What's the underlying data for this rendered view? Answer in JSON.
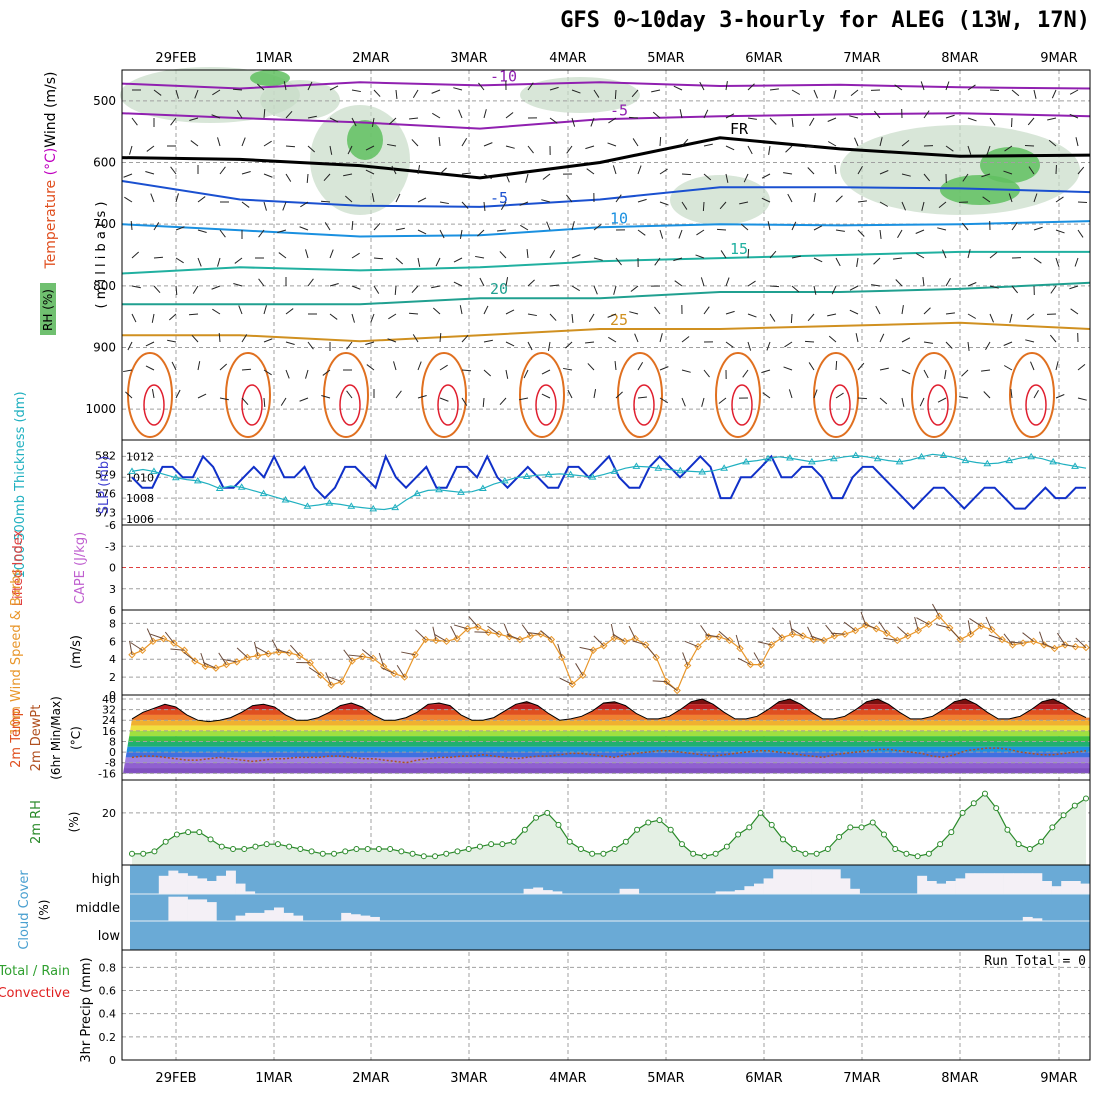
{
  "title": "GFS 0~10day 3-hourly for ALEG (13W, 17N)",
  "date_labels": [
    "29FEB",
    "1MAR",
    "2MAR",
    "3MAR",
    "4MAR",
    "5MAR",
    "6MAR",
    "7MAR",
    "8MAR",
    "9MAR"
  ],
  "colors": {
    "slp": "#1030c8",
    "thick": "#20b0c0",
    "wind": "#e8962a",
    "rh": "#2a8a2a",
    "cloud": "#6aaad6",
    "cloud_clear": "#f4f0f6",
    "frame": "#000000",
    "grid": "#a0a0a0"
  },
  "panels": {
    "upper": {
      "ylabels": [
        "Temperature",
        "(°C)",
        "Wind (m/s)",
        "RH (%)"
      ],
      "unit_vertical": "( m i l l i b a r s )",
      "ticks": [
        "500",
        "600",
        "700",
        "800",
        "900",
        "1000"
      ],
      "temp_contours": [
        {
          "label": "-10",
          "level": -10,
          "color": "#9020b0",
          "y": [
            472,
            480,
            470,
            475,
            470,
            476,
            474,
            478,
            480
          ]
        },
        {
          "label": "-5",
          "level": -5,
          "color": "#9020b0",
          "y": [
            520,
            528,
            535,
            545,
            530,
            525,
            522,
            520,
            525
          ]
        },
        {
          "label": "FR",
          "level": 0,
          "color": "#000000",
          "y": [
            592,
            595,
            605,
            625,
            600,
            560,
            578,
            590,
            588
          ]
        },
        {
          "label": "-5",
          "level": -5,
          "color": "#1a50d0",
          "y": [
            630,
            660,
            670,
            672,
            660,
            640,
            640,
            642,
            648
          ]
        },
        {
          "label": "10",
          "level": 10,
          "color": "#1a90e0",
          "y": [
            700,
            710,
            720,
            718,
            705,
            700,
            702,
            700,
            695
          ]
        },
        {
          "label": "15",
          "level": 15,
          "color": "#20b0a0",
          "y": [
            780,
            770,
            775,
            770,
            760,
            755,
            750,
            745,
            745
          ]
        },
        {
          "label": "20",
          "level": 20,
          "color": "#20a090",
          "y": [
            830,
            830,
            830,
            820,
            820,
            810,
            810,
            805,
            795
          ]
        },
        {
          "label": "25",
          "level": 25,
          "color": "#d09020",
          "y": [
            880,
            880,
            890,
            880,
            870,
            870,
            865,
            860,
            870
          ]
        }
      ]
    },
    "slp": {
      "label": "SLP (mb)",
      "thick_label": "1000-500mb Thickness (dm)",
      "ticks_left": [
        "582",
        "579",
        "576",
        "573"
      ],
      "ticks_right": [
        "1012",
        "1010",
        "1008",
        "1006"
      ],
      "slp": [
        1010,
        1009,
        1009,
        1011,
        1011,
        1010,
        1010,
        1012,
        1011,
        1009,
        1009,
        1010,
        1011,
        1010,
        1012,
        1010,
        1010,
        1011,
        1009,
        1008,
        1009,
        1011,
        1011,
        1010,
        1009,
        1012,
        1010,
        1009,
        1010,
        1011,
        1009,
        1009,
        1011,
        1011,
        1010,
        1012,
        1010,
        1009,
        1010,
        1011,
        1010,
        1009,
        1009,
        1011,
        1011,
        1010,
        1011,
        1012,
        1010,
        1009,
        1009,
        1011,
        1012,
        1011,
        1010,
        1011,
        1012,
        1011,
        1008,
        1008,
        1010,
        1010,
        1011,
        1012,
        1010,
        1010,
        1011,
        1011,
        1010,
        1008,
        1008,
        1010,
        1011,
        1011,
        1010,
        1009,
        1008,
        1007,
        1008,
        1009,
        1009,
        1008,
        1007,
        1008,
        1009,
        1009,
        1008,
        1007,
        1007,
        1008,
        1009,
        1008,
        1008,
        1009,
        1009
      ],
      "thick": [
        579.5,
        579.8,
        579.5,
        579,
        578.5,
        578.2,
        578,
        577.5,
        576.8,
        577.2,
        577,
        576.5,
        576,
        575.5,
        575,
        574.5,
        574,
        574.2,
        574.5,
        574.3,
        574,
        573.8,
        573.6,
        573.5,
        573.8,
        575,
        576,
        576.5,
        576.6,
        576.4,
        576.2,
        576.3,
        576.8,
        577.5,
        578,
        578.5,
        578.7,
        578.9,
        579,
        579.1,
        579,
        578.8,
        578.6,
        579,
        579.5,
        580,
        580.3,
        580.2,
        580,
        579.8,
        579.6,
        579.5,
        579.4,
        579.6,
        580,
        580.5,
        581,
        581.2,
        581.5,
        581.8,
        581.6,
        581.3,
        581,
        581.2,
        581.5,
        581.8,
        582,
        581.8,
        581.5,
        581.2,
        581,
        581.3,
        581.8,
        582.2,
        582,
        581.7,
        581.2,
        580.9,
        580.7,
        580.8,
        581.2,
        581.6,
        581.8,
        581.5,
        581,
        580.6,
        580.3,
        580
      ]
    },
    "cape": {
      "label_li": "Lifted Index",
      "label_cape": "CAPE (J/kg)",
      "ticks": [
        "-6",
        "-3",
        "0",
        "3",
        "6"
      ]
    },
    "wind": {
      "label": "10m Wind Speed & Barbs",
      "unit": "(m/s)",
      "ticks": [
        "8",
        "6",
        "4",
        "2",
        "0"
      ],
      "values": [
        4.5,
        5,
        6,
        6.3,
        5.8,
        5,
        3.8,
        3.2,
        3,
        3.4,
        3.7,
        4.2,
        4.4,
        4.6,
        4.8,
        4.7,
        4.4,
        3.6,
        2.2,
        1.1,
        1.5,
        3.8,
        4.3,
        4.1,
        3.2,
        2.4,
        2,
        4.5,
        6.2,
        6.1,
        6,
        6.3,
        7.4,
        7.6,
        7,
        6.8,
        6.5,
        6.2,
        6.6,
        6.8,
        6.2,
        4.2,
        1.2,
        2.2,
        5,
        5.5,
        6.4,
        6,
        6.3,
        5.6,
        4.2,
        1.5,
        0.5,
        3.3,
        5.4,
        6.5,
        6.5,
        6.1,
        5.2,
        3.4,
        3.4,
        5.6,
        6.4,
        6.8,
        6.6,
        6.2,
        6.1,
        6.6,
        6.8,
        7.2,
        7.8,
        7.4,
        6.9,
        6.1,
        6.6,
        7.2,
        7.9,
        8.8,
        7.5,
        6.2,
        6.8,
        7.7,
        7.3,
        6.2,
        5.6,
        5.8,
        6,
        5.6,
        5.2,
        5.6,
        5.4,
        5.3
      ]
    },
    "temp2m": {
      "label_a": "2m Temp",
      "label_b": "2m DewPt",
      "label_c": "(6hr Min/Max)",
      "unit": "(°C)",
      "ticks": [
        "40",
        "32",
        "24",
        "16",
        "8",
        "0",
        "-8",
        "-16"
      ],
      "temp": [
        25,
        30,
        33,
        36,
        34,
        28,
        24,
        23,
        24,
        26,
        30,
        35,
        36,
        34,
        28,
        24,
        24,
        26,
        30,
        35,
        37,
        34,
        28,
        24,
        24,
        26,
        30,
        36,
        37,
        35,
        28,
        24,
        24,
        26,
        31,
        36,
        38,
        35,
        29,
        24,
        25,
        27,
        31,
        37,
        38,
        35,
        29,
        25,
        25,
        27,
        32,
        38,
        40,
        36,
        30,
        25,
        25,
        27,
        32,
        38,
        40,
        36,
        30,
        25,
        25,
        27,
        32,
        38,
        40,
        36,
        30,
        25,
        25,
        27,
        32,
        38,
        40,
        36,
        30,
        25,
        25,
        27,
        32,
        38,
        40,
        36,
        30,
        26
      ],
      "dew": [
        -4,
        -3,
        -3,
        -4,
        -5,
        -6,
        -6,
        -5,
        -4,
        -5,
        -6,
        -7,
        -6,
        -5,
        -5,
        -4,
        -4,
        -4,
        -3,
        -3,
        -4,
        -5,
        -5,
        -6,
        -7,
        -8,
        -6,
        -5,
        -4,
        -4,
        -3,
        -3,
        -2,
        -3,
        -4,
        -5,
        -4,
        -3,
        -3,
        -2,
        -1,
        -1,
        -2,
        -3,
        -4,
        -2,
        -1,
        0,
        1,
        1,
        0,
        -1,
        -2,
        -3,
        -2,
        -1,
        0,
        1,
        1,
        0,
        -1,
        -2,
        -3,
        -4,
        -2,
        -1,
        0,
        1,
        2,
        2,
        1,
        0,
        -1,
        -3,
        -4,
        -2,
        1,
        2,
        3,
        3,
        2,
        0,
        -1,
        -2,
        -2,
        -1,
        0,
        1
      ]
    },
    "rh2m": {
      "label": "2m RH",
      "unit": "(%)",
      "ticks": [
        "20"
      ],
      "values": [
        3,
        3,
        4,
        8,
        11,
        12,
        12,
        9,
        6,
        5,
        5,
        6,
        7,
        7,
        6,
        5,
        4,
        3,
        3,
        4,
        5,
        5,
        5,
        5,
        4,
        3,
        2,
        2,
        3,
        4,
        5,
        6,
        7,
        7,
        8,
        13,
        18,
        20,
        15,
        8,
        5,
        3,
        3,
        5,
        8,
        13,
        16,
        17,
        13,
        7,
        3,
        2,
        3,
        6,
        11,
        14,
        20,
        15,
        9,
        5,
        3,
        3,
        5,
        10,
        14,
        14,
        16,
        11,
        5,
        3,
        2,
        3,
        7,
        12,
        20,
        24,
        28,
        22,
        13,
        7,
        5,
        8,
        14,
        19,
        23,
        26
      ]
    },
    "cloud": {
      "label": "Cloud Cover",
      "unit": "(%)",
      "levels": [
        "high",
        "middle",
        "low"
      ],
      "high": [
        5,
        5,
        5,
        70,
        90,
        80,
        70,
        60,
        50,
        70,
        90,
        40,
        10,
        5,
        5,
        5,
        5,
        5,
        5,
        5,
        5,
        5,
        5,
        5,
        5,
        5,
        5,
        5,
        5,
        5,
        5,
        5,
        5,
        5,
        5,
        5,
        5,
        5,
        5,
        5,
        5,
        20,
        25,
        15,
        10,
        5,
        5,
        5,
        5,
        5,
        5,
        20,
        20,
        5,
        5,
        5,
        5,
        5,
        5,
        5,
        5,
        10,
        10,
        15,
        30,
        40,
        60,
        95,
        95,
        95,
        95,
        95,
        95,
        95,
        60,
        20,
        5,
        5,
        5,
        5,
        5,
        5,
        70,
        50,
        40,
        50,
        60,
        80,
        80,
        80,
        80,
        80,
        80,
        80,
        80,
        50,
        30,
        50,
        50,
        40
      ],
      "middle": [
        5,
        5,
        5,
        5,
        90,
        90,
        80,
        80,
        70,
        5,
        5,
        20,
        30,
        30,
        40,
        50,
        30,
        20,
        5,
        5,
        5,
        5,
        30,
        25,
        20,
        15,
        5,
        5,
        5,
        5,
        5,
        5,
        5,
        5,
        5,
        5,
        5,
        5,
        5,
        5,
        5,
        5,
        5,
        5,
        5,
        5,
        5,
        5,
        5,
        5,
        5,
        5,
        5,
        5,
        5,
        5,
        5,
        5,
        5,
        5,
        5,
        5,
        5,
        5,
        5,
        5,
        5,
        5,
        5,
        5,
        5,
        5,
        5,
        5,
        5,
        5,
        5,
        5,
        5,
        5,
        5,
        5,
        5,
        5,
        5,
        5,
        5,
        5,
        5,
        5,
        5,
        5,
        5,
        15,
        10,
        5,
        5,
        5,
        5,
        5
      ]
    },
    "precip": {
      "label_a": "Total / Rain",
      "label_b": "Convective",
      "label_c": "3hr Precip (mm)",
      "ticks": [
        "0.8",
        "0.6",
        "0.4",
        "0.2",
        "0"
      ],
      "run_total": "Run Total = 0"
    }
  }
}
